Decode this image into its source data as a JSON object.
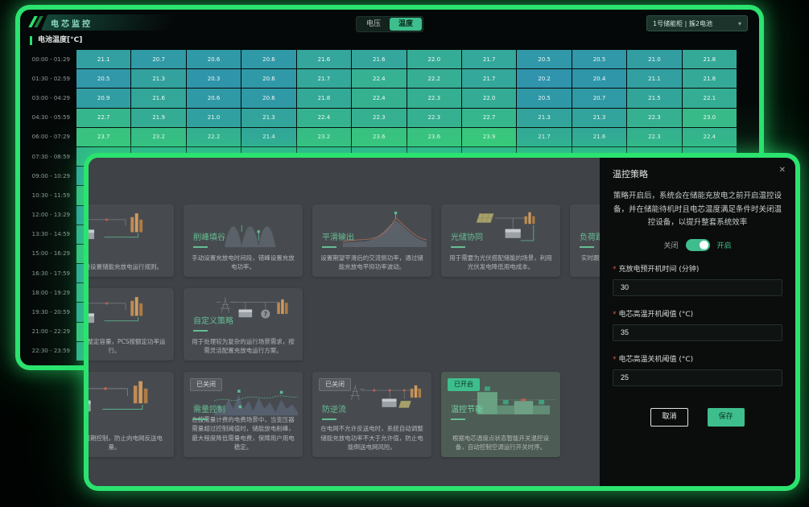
{
  "colors": {
    "accent_green": "#2BE36F",
    "active_button_green": "#3FBE8D",
    "heat_low": "#2E91AE",
    "heat_high": "#3CC67E",
    "heat_mid": "#32A999"
  },
  "required_mark": "*",
  "back_window": {
    "title": "电芯监控",
    "mode_toggle": [
      {
        "label": "电压",
        "active": false
      },
      {
        "label": "温度",
        "active": true
      }
    ],
    "device_selector": {
      "value": "1号储能柜 | 簇2电池",
      "chevron_icon": "▾"
    },
    "section_label": "电池温度[°C]",
    "heatmap": {
      "value_range": [
        20.0,
        24.0
      ],
      "columns": 12,
      "rows": [
        {
          "label": "00:00 - 01:29",
          "values": [
            "21.1",
            "20.7",
            "20.6",
            "20.6",
            "21.6",
            "21.6",
            "22.0",
            "21.7",
            "20.5",
            "20.5",
            "21.0",
            "21.8"
          ]
        },
        {
          "label": "01:30 - 02:59",
          "values": [
            "20.5",
            "21.3",
            "20.3",
            "20.6",
            "21.7",
            "22.4",
            "22.2",
            "21.7",
            "20.2",
            "20.4",
            "21.1",
            "21.8"
          ]
        },
        {
          "label": "03:00 - 04:29",
          "values": [
            "20.9",
            "21.6",
            "20.6",
            "20.6",
            "21.8",
            "22.4",
            "22.3",
            "22.0",
            "20.5",
            "20.7",
            "21.5",
            "22.1"
          ]
        },
        {
          "label": "04:30 - 05:59",
          "values": [
            "22.7",
            "21.9",
            "21.0",
            "21.3",
            "22.4",
            "22.3",
            "22.3",
            "22.7",
            "21.3",
            "21.3",
            "22.3",
            "23.0"
          ]
        },
        {
          "label": "06:00 - 07:29",
          "values": [
            "23.7",
            "23.2",
            "22.2",
            "21.4",
            "23.2",
            "23.6",
            "23.6",
            "23.9",
            "21.7",
            "21.6",
            "22.3",
            "22.4"
          ]
        },
        {
          "label": "07:30 - 08:59",
          "values": [],
          "edge_color": "#33B28E"
        },
        {
          "label": "09:00 - 10:29",
          "values": [],
          "edge_color": "#2F9FA6"
        },
        {
          "label": "10:30 - 11:59",
          "values": [],
          "edge_color": "#35B989"
        },
        {
          "label": "12:00 - 13:29",
          "values": [],
          "edge_color": "#2F9AA9"
        },
        {
          "label": "13:30 - 14:59",
          "values": [],
          "edge_color": "#31A89A"
        },
        {
          "label": "15:00 - 16:29",
          "values": [],
          "edge_color": "#36BC86"
        },
        {
          "label": "16:30 - 17:59",
          "values": [],
          "edge_color": "#309FA5"
        },
        {
          "label": "18:00 - 19:29",
          "values": [],
          "edge_color": "#33AF90"
        },
        {
          "label": "19:30 - 20:59",
          "values": [],
          "edge_color": "#30A19F"
        },
        {
          "label": "21:00 - 22:29",
          "values": [],
          "edge_color": "#36BD85"
        },
        {
          "label": "22:30 - 23:59",
          "values": [],
          "edge_color": "#32A798"
        }
      ]
    }
  },
  "front_window": {
    "strategy_cards": [
      {
        "row": 1,
        "col": 1,
        "title": "",
        "description": "根据时段设置储能充放电运行规则。",
        "icon": "battery-building-flow-icon",
        "badge": null,
        "selected": false
      },
      {
        "row": 1,
        "col": 2,
        "title": "削峰填谷",
        "description": "手动设置充放电时间段，错峰设置充放电功率。",
        "icon": "waves-icon",
        "badge": null,
        "selected": false
      },
      {
        "row": 1,
        "col": 3,
        "title": "平滑输出",
        "description": "设置期望平滑后的交流侧功率，通过储能充放电平抑功率波动。",
        "icon": "mountain-icon",
        "badge": null,
        "selected": false
      },
      {
        "row": 1,
        "col": 4,
        "title": "光储协同",
        "description": "用于需要为光伏搭配储能的场景，利用光伏发电降低用电成本。",
        "icon": "solar-flow-icon",
        "badge": null,
        "selected": false
      },
      {
        "row": 1,
        "col": 5,
        "title": "负荷跟踪",
        "description": "实时跟踪负荷变化，动态调整储能出力。",
        "icon": "load-curve-icon",
        "badge": null,
        "selected": false
      },
      {
        "row": 2,
        "col": 1,
        "title": "",
        "description": "根据需量整定容量，PCS按额定功率运行。",
        "icon": "battery-building-flow-icon",
        "badge": null,
        "selected": false
      },
      {
        "row": 2,
        "col": 2,
        "title": "自定义策略",
        "description": "用于处理较为复杂的运行场景需求，按需灵活配置充放电运行方案。",
        "icon": "custom-flow-icon",
        "badge": null,
        "selected": false
      },
      {
        "row": 3,
        "col": 1,
        "title": "",
        "description": "按计费周期控制，防止向电网反送电量。",
        "icon": "battery-building-flow-icon",
        "badge": null,
        "selected": false
      },
      {
        "row": 3,
        "col": 2,
        "title": "需量控制",
        "description": "在按需量计费的电费场景中，当变压器需量超过控制阈值时，储能放电削峰，最大程度降低需量电费，保障用户用电稳定。",
        "icon": "demand-chart-icon",
        "badge": "已关闭",
        "badge_state": "off",
        "selected": false
      },
      {
        "row": 3,
        "col": 3,
        "title": "防逆流",
        "description": "在电网不允许反送电时，系统自动调整储能充放电功率不大于允许值，防止电能倒送电网风险。",
        "icon": "grid-flow-icon",
        "badge": "已关闭",
        "badge_state": "off",
        "selected": false
      },
      {
        "row": 3,
        "col": 4,
        "title": "温控节能",
        "description": "根据电芯温度点状态智能开关温控设备，自动控制空调运行开关时序。",
        "icon": "energy-bars-icon",
        "badge": "已开启",
        "badge_state": "on",
        "selected": true
      }
    ],
    "dialog": {
      "title": "温控策略",
      "close_icon": "✕",
      "description": "策略开启后，系统会在储能充放电之前开启温控设备，并在储能待机时且电芯温度满足条件时关闭温控设备，以提升整套系统效率",
      "toggle": {
        "off_label": "关闭",
        "on_label": "开启",
        "state": "on"
      },
      "fields": [
        {
          "label": "充放电预开机时间 (分钟)",
          "value": "30"
        },
        {
          "label": "电芯高温开机阈值 (°C)",
          "value": "35"
        },
        {
          "label": "电芯高温关机阈值 (°C)",
          "value": "25"
        }
      ],
      "cancel_label": "取消",
      "save_label": "保存"
    }
  }
}
